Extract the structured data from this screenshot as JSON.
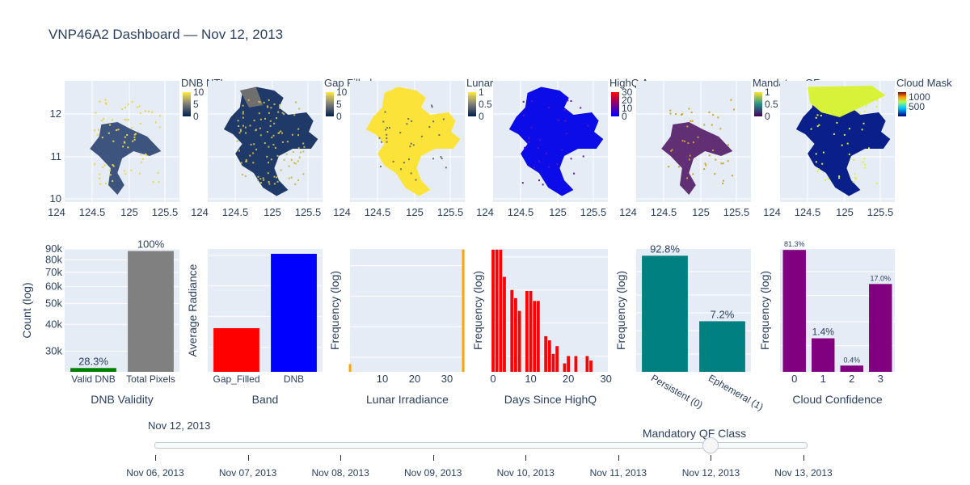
{
  "title": "VNP46A2 Dashboard — Nov 12, 2013",
  "colors": {
    "panel_bg": "#e5ecf6",
    "grid": "#ffffff",
    "font": "#2a3f5f"
  },
  "maps": {
    "xticks": [
      "124",
      "124.5",
      "125",
      "125.5"
    ],
    "yticks": [
      "12",
      "11",
      "10"
    ],
    "panels": [
      {
        "name": "dnb",
        "title": "DNB NTL",
        "colorscale": "cividis",
        "cbar_ticks": [
          "10",
          "5",
          "0"
        ]
      },
      {
        "name": "gap",
        "title": "Gap Filled",
        "colorscale": "cividis",
        "cbar_ticks": [
          "10",
          "5",
          "0"
        ]
      },
      {
        "name": "lunar",
        "title": "Lunar",
        "colorscale": "cividis",
        "cbar_ticks": [
          "1",
          "0.5",
          "0"
        ]
      },
      {
        "name": "highq",
        "title": "HighQ Age",
        "colorscale": "bluered",
        "cbar_ticks": [
          "30",
          "20",
          "10",
          "0"
        ]
      },
      {
        "name": "mqf",
        "title": "Mandatory QF",
        "colorscale": "viridis",
        "cbar_ticks": [
          "1",
          "0.5",
          "0"
        ]
      },
      {
        "name": "cloud",
        "title": "Cloud Mask",
        "colorscale": "jet",
        "cbar_ticks": [
          "1000",
          "500"
        ]
      }
    ]
  },
  "chart_data": [
    {
      "type": "bar",
      "xlabel": "DNB Validity",
      "ylabel": "Count (log)",
      "categories": [
        "Valid DNB",
        "Total Pixels"
      ],
      "values": [
        25000,
        88000
      ],
      "labels": [
        "28.3%",
        "100%"
      ],
      "colors": [
        "#008000",
        "#808080"
      ],
      "yscale": "log",
      "ytick_labels": [
        "30k",
        "40k",
        "50k",
        "60k",
        "70k",
        "80k",
        "90k"
      ]
    },
    {
      "type": "bar",
      "xlabel": "Band",
      "ylabel": "Average Radiance",
      "categories": [
        "Gap_Filled",
        "DNB"
      ],
      "values": [
        0.37,
        1.0
      ],
      "colors": [
        "#ff0000",
        "#0000ff"
      ]
    },
    {
      "type": "bar",
      "xlabel": "Lunar Irradiance",
      "ylabel": "Frequency (log)",
      "xtick_labels": [
        "10",
        "20",
        "30"
      ],
      "x": [
        0,
        35
      ],
      "values": [
        1.8,
        10000
      ],
      "color": "#ffa500"
    },
    {
      "type": "bar",
      "xlabel": "Days Since HighQ",
      "ylabel": "Frequency (log)",
      "xtick_labels": [
        "0",
        "10",
        "20",
        "30"
      ],
      "x": [
        0,
        1,
        2,
        3,
        5,
        6,
        7,
        9,
        10,
        11,
        12,
        14,
        15,
        16,
        17,
        19,
        20,
        22,
        25,
        26
      ],
      "values": [
        5000,
        5000,
        5000,
        750,
        300,
        170,
        70,
        280,
        280,
        140,
        140,
        12,
        9,
        3.5,
        6,
        1.8,
        3,
        3,
        3,
        2.2
      ],
      "color": "#ff0000"
    },
    {
      "type": "bar",
      "xlabel": "Mandatory QF Class",
      "ylabel": "Frequency (log)",
      "categories": [
        "Persistent (0)",
        "Ephemeral (1)"
      ],
      "values": [
        92.8,
        7.2
      ],
      "labels": [
        "92.8%",
        "7.2%"
      ],
      "color": "#008080"
    },
    {
      "type": "bar",
      "xlabel": "Cloud Confidence",
      "ylabel": "Frequency (log)",
      "categories": [
        "0",
        "1",
        "2",
        "3"
      ],
      "values": [
        81.3,
        1.4,
        0.4,
        17.0
      ],
      "labels": [
        "81.3%",
        "1.4%",
        "0.4%",
        "17.0%"
      ],
      "color": "#800080"
    }
  ],
  "slider": {
    "current_label": "Nov 12, 2013",
    "ticks": [
      "Nov 06, 2013",
      "Nov 07, 2013",
      "Nov 08, 2013",
      "Nov 09, 2013",
      "Nov 10, 2013",
      "Nov 11, 2013",
      "Nov 12, 2013",
      "Nov 13, 2013"
    ],
    "selected_index": 6
  }
}
